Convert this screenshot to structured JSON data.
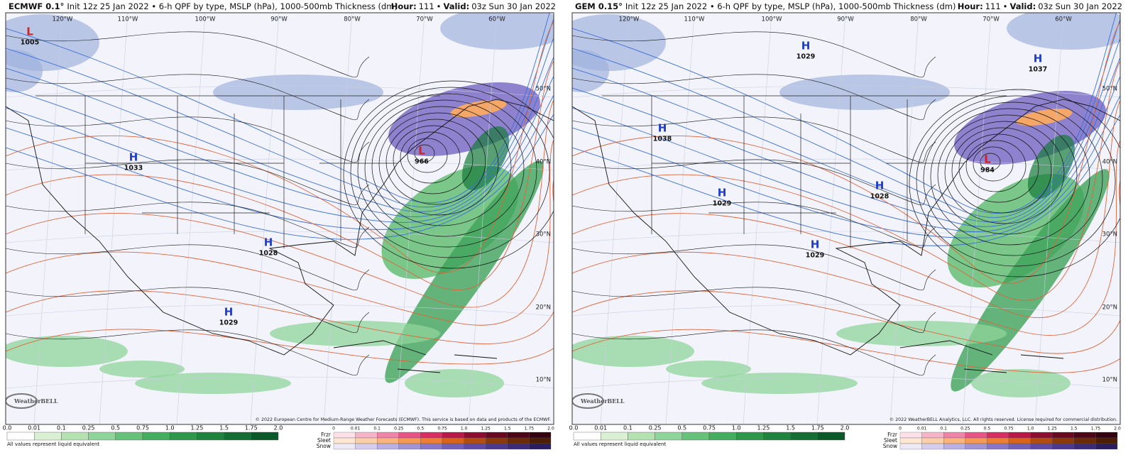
{
  "panels": [
    {
      "title_model": "ECMWF 0.1°",
      "title_info": "Init 12z 25 Jan 2022 • 6-h QPF by type, MSLP (hPa), 1000-500mb Thickness (dm)",
      "hour_label": "Hour:",
      "hour": 111,
      "valid_label": "Valid:",
      "valid": "03z Sun 30 Jan 2022",
      "longitudes": [
        "120°W",
        "110°W",
        "100°W",
        "90°W",
        "80°W",
        "70°W",
        "60°W"
      ],
      "latitudes": [
        "50°N",
        "40°N",
        "30°N",
        "20°N",
        "10°N"
      ],
      "centers": [
        {
          "type": "L",
          "pressure": 1005
        },
        {
          "type": "H",
          "pressure": 1033
        },
        {
          "type": "H",
          "pressure": 1028
        },
        {
          "type": "H",
          "pressure": 1029
        },
        {
          "type": "L",
          "pressure": 966
        }
      ],
      "copyright": "© 2022 European Centre for Medium-Range Weather Forecasts (ECMWF). This service is based on data and products of the ECMWF.",
      "logo": "WeatherBELL",
      "qpf_scale": [
        "0.0",
        "0.01",
        "0.1",
        "0.25",
        "0.5",
        "0.75",
        "1.0",
        "1.25",
        "1.5",
        "1.75",
        "2.0"
      ],
      "qpf_note": "All values represent liquid equivalent",
      "ptypes": [
        "Frzr",
        "Sleet",
        "Snow"
      ],
      "ptype_scale": [
        "0",
        "0.01",
        "0.1",
        "0.25",
        "0.5",
        "0.75",
        "1.0",
        "1.25",
        "1.5",
        "1.75",
        "2.0"
      ]
    },
    {
      "title_model": "GEM 0.15°",
      "title_info": "Init 12z 25 Jan 2022 • 6-h QPF by type, MSLP (hPa), 1000-500mb Thickness (dm)",
      "hour_label": "Hour:",
      "hour": 111,
      "valid_label": "Valid:",
      "valid": "03z Sun 30 Jan 2022",
      "longitudes": [
        "120°W",
        "110°W",
        "100°W",
        "90°W",
        "80°W",
        "70°W",
        "60°W"
      ],
      "latitudes": [
        "50°N",
        "40°N",
        "30°N",
        "20°N",
        "10°N"
      ],
      "centers": [
        {
          "type": "H",
          "pressure": 1029
        },
        {
          "type": "H",
          "pressure": 1037
        },
        {
          "type": "H",
          "pressure": 1038
        },
        {
          "type": "H",
          "pressure": 1029
        },
        {
          "type": "H",
          "pressure": 1028
        },
        {
          "type": "H",
          "pressure": 1029
        },
        {
          "type": "L",
          "pressure": 984
        }
      ],
      "copyright": "© 2022 WeatherBELL Analytics, LLC. All rights reserved. License required for commercial distribution.",
      "logo": "WeatherBELL",
      "qpf_scale": [
        "0.0",
        "0.01",
        "0.1",
        "0.25",
        "0.5",
        "0.75",
        "1.0",
        "1.25",
        "1.5",
        "1.75",
        "2.0"
      ],
      "qpf_note": "All values represent liquid equivalent",
      "ptypes": [
        "Frzr",
        "Sleet",
        "Snow"
      ],
      "ptype_scale": [
        "0",
        "0.01",
        "0.1",
        "0.25",
        "0.5",
        "0.75",
        "1.0",
        "1.25",
        "1.5",
        "1.75",
        "2.0"
      ]
    }
  ]
}
